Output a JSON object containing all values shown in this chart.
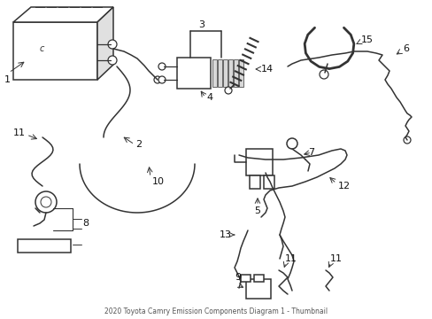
{
  "title": "2020 Toyota Camry Emission Components Diagram 1 - Thumbnail",
  "background_color": "#ffffff",
  "line_color": "#333333",
  "label_color": "#111111",
  "figsize": [
    4.89,
    3.6
  ],
  "dpi": 100
}
